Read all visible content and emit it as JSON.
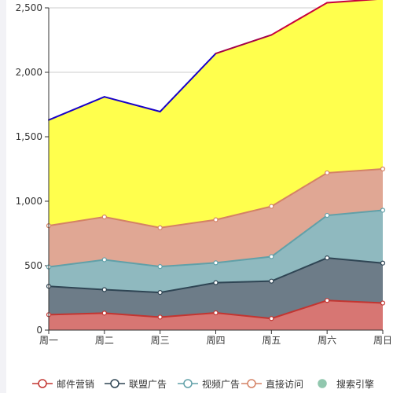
{
  "chart_data": {
    "type": "area",
    "stacked": true,
    "categories": [
      "周一",
      "周二",
      "周三",
      "周四",
      "周五",
      "周六",
      "周日"
    ],
    "ylim": [
      0,
      2500
    ],
    "yticks": [
      "0",
      "500",
      "1,000",
      "1,500",
      "2,000",
      "2,500"
    ],
    "grid": true,
    "legend_position": "bottom",
    "series": [
      {
        "name": "邮件营销",
        "values": [
          120,
          132,
          101,
          134,
          90,
          230,
          210
        ],
        "color": "#c23531",
        "fill": "#d77673"
      },
      {
        "name": "联盟广告",
        "values": [
          220,
          182,
          191,
          234,
          290,
          330,
          310
        ],
        "color": "#2f4554",
        "fill": "#6d7c88"
      },
      {
        "name": "视频广告",
        "values": [
          150,
          232,
          201,
          154,
          190,
          330,
          410
        ],
        "color": "#61a0a8",
        "fill": "#8fb9bf"
      },
      {
        "name": "直接访问",
        "values": [
          320,
          332,
          301,
          334,
          390,
          330,
          320
        ],
        "color": "#d48265",
        "fill": "#e0a794"
      },
      {
        "name": "搜索引擎",
        "values": [
          820,
          932,
          901,
          1290,
          1330,
          1320,
          1320
        ],
        "color": "#91c7ae",
        "fill": "#ffff4d",
        "top_line_colors": [
          "#1800c8",
          "#1800c8",
          "#1800c8",
          "#a3004a",
          "#c8003c",
          "#c8003c",
          "#c8003c"
        ]
      }
    ]
  }
}
